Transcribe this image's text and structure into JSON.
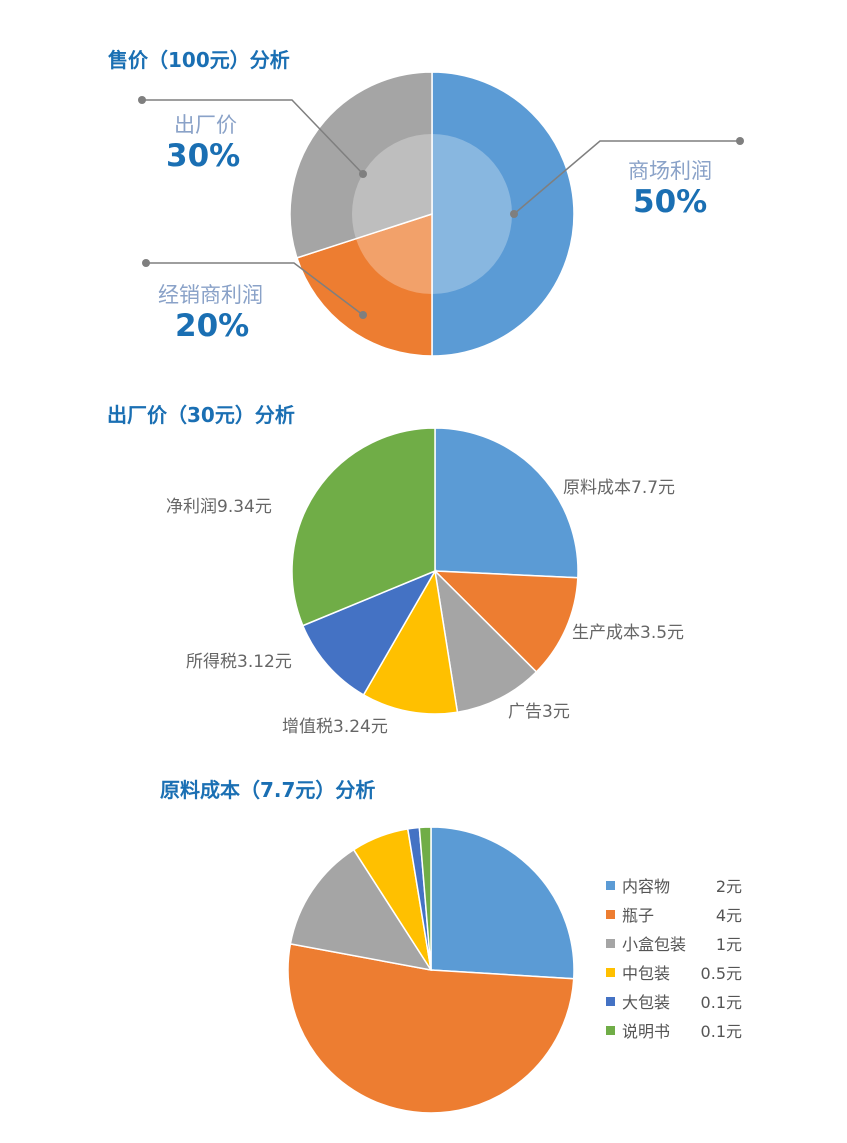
{
  "chart_data": [
    {
      "type": "pie",
      "title": "售价（100元）分析",
      "slices": [
        {
          "label": "商场利润",
          "value": 50,
          "value_label": "50%",
          "color": "#5b9bd5"
        },
        {
          "label": "经销商利润",
          "value": 20,
          "value_label": "20%",
          "color": "#ed7d31"
        },
        {
          "label": "出厂价",
          "value": 30,
          "value_label": "30%",
          "color": "#a5a5a5"
        }
      ]
    },
    {
      "type": "pie",
      "title": "出厂价（30元）分析",
      "slices": [
        {
          "label": "原料成本7.7元",
          "value": 7.7,
          "color": "#5b9bd5"
        },
        {
          "label": "生产成本3.5元",
          "value": 3.5,
          "color": "#ed7d31"
        },
        {
          "label": "广告3元",
          "value": 3,
          "color": "#a5a5a5"
        },
        {
          "label": "增值税3.24元",
          "value": 3.24,
          "color": "#ffc000"
        },
        {
          "label": "所得税3.12元",
          "value": 3.12,
          "color": "#4472c4"
        },
        {
          "label": "净利润9.34元",
          "value": 9.34,
          "color": "#70ad47"
        }
      ]
    },
    {
      "type": "pie",
      "title": "原料成本（7.7元）分析",
      "legend_position": "right",
      "slices": [
        {
          "label": "内容物",
          "value": 2,
          "value_label": "2元",
          "color": "#5b9bd5"
        },
        {
          "label": "瓶子",
          "value": 4,
          "value_label": "4元",
          "color": "#ed7d31"
        },
        {
          "label": "小盒包装",
          "value": 1,
          "value_label": "1元",
          "color": "#a5a5a5"
        },
        {
          "label": "中包装",
          "value": 0.5,
          "value_label": "0.5元",
          "color": "#ffc000"
        },
        {
          "label": "大包装",
          "value": 0.1,
          "value_label": "0.1元",
          "color": "#4472c4"
        },
        {
          "label": "说明书",
          "value": 0.1,
          "value_label": "0.1元",
          "color": "#70ad47"
        }
      ]
    }
  ]
}
